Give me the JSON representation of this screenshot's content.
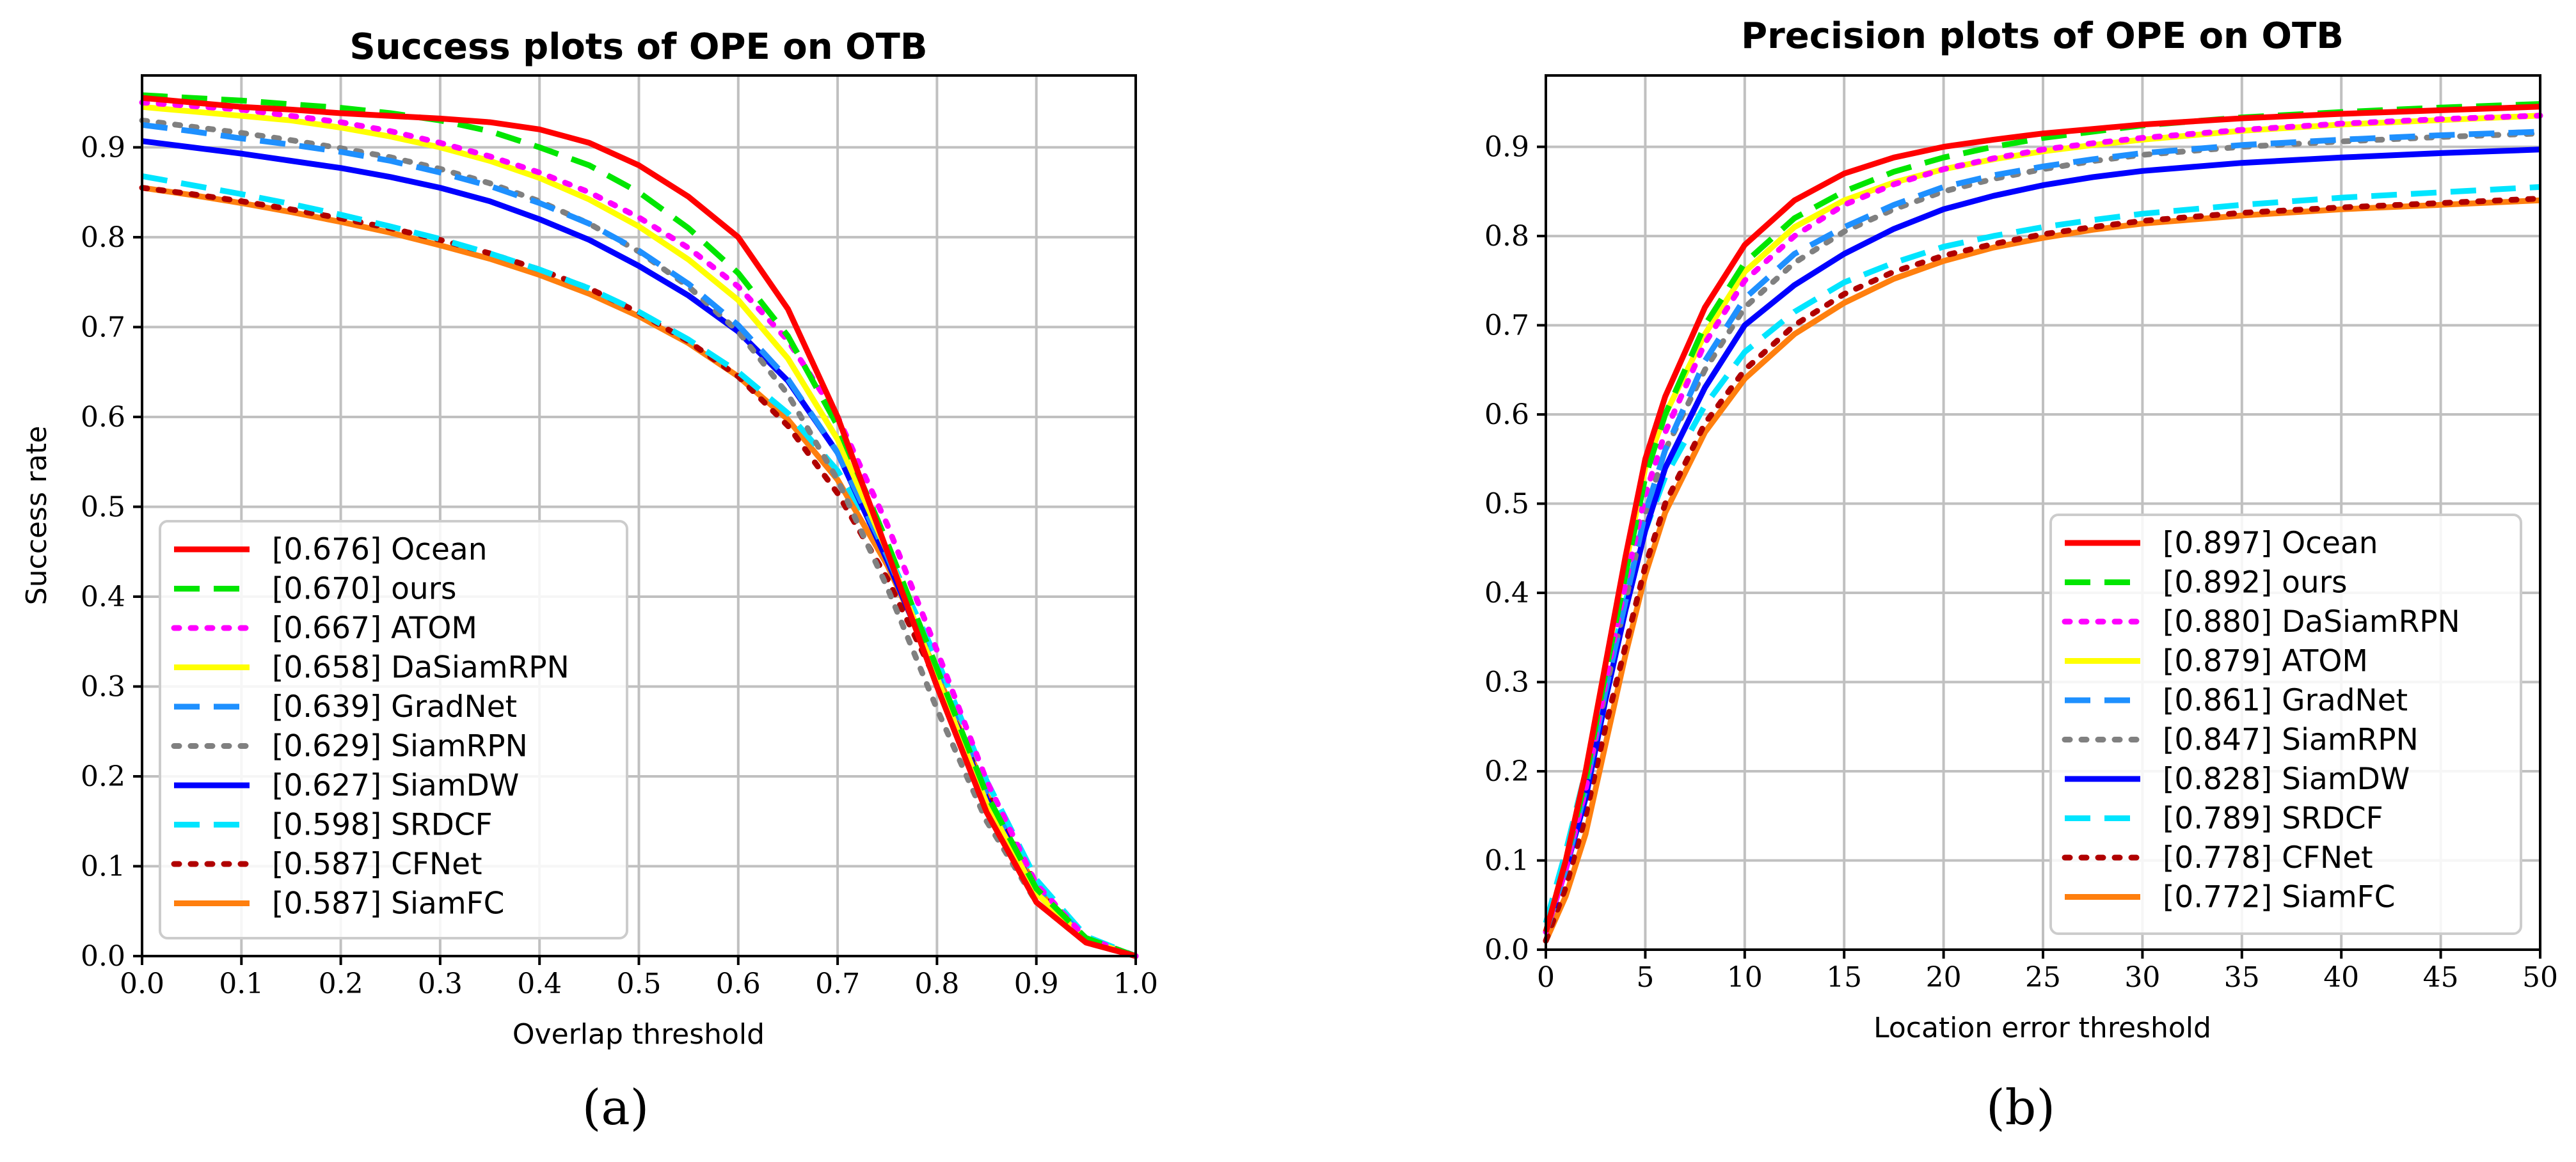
{
  "chart_data": [
    {
      "type": "line",
      "title": "Success plots of OPE on OTB",
      "xlabel": "Overlap threshold",
      "ylabel": "Success rate",
      "caption": "(a)",
      "xlim": [
        0,
        1
      ],
      "ylim": [
        0,
        0.98
      ],
      "xticks": [
        0,
        0.1,
        0.2,
        0.3,
        0.4,
        0.5,
        0.6,
        0.7,
        0.8,
        0.9,
        1.0
      ],
      "xtick_labels": [
        "0.0",
        "0.1",
        "0.2",
        "0.3",
        "0.4",
        "0.5",
        "0.6",
        "0.7",
        "0.8",
        "0.9",
        "1.0"
      ],
      "yticks": [
        0,
        0.1,
        0.2,
        0.3,
        0.4,
        0.5,
        0.6,
        0.7,
        0.8,
        0.9
      ],
      "ytick_labels": [
        "0.0",
        "0.1",
        "0.2",
        "0.3",
        "0.4",
        "0.5",
        "0.6",
        "0.7",
        "0.8",
        "0.9"
      ],
      "grid": true,
      "legend_position": "lower-left",
      "x": [
        0,
        0.05,
        0.1,
        0.15,
        0.2,
        0.25,
        0.3,
        0.35,
        0.4,
        0.45,
        0.5,
        0.55,
        0.6,
        0.65,
        0.7,
        0.75,
        0.8,
        0.85,
        0.9,
        0.95,
        1.0
      ],
      "series": [
        {
          "name": "[0.676] Ocean",
          "color": "#ff0000",
          "dash": "solid",
          "values": [
            0.955,
            0.95,
            0.945,
            0.942,
            0.938,
            0.935,
            0.932,
            0.928,
            0.92,
            0.905,
            0.88,
            0.845,
            0.8,
            0.72,
            0.6,
            0.45,
            0.3,
            0.16,
            0.06,
            0.015,
            0.0
          ]
        },
        {
          "name": "[0.670] ours",
          "color": "#00e600",
          "dash": "dash",
          "values": [
            0.958,
            0.955,
            0.952,
            0.948,
            0.944,
            0.938,
            0.93,
            0.918,
            0.9,
            0.88,
            0.85,
            0.81,
            0.76,
            0.69,
            0.59,
            0.46,
            0.32,
            0.18,
            0.075,
            0.02,
            0.0
          ]
        },
        {
          "name": "[0.667] ATOM",
          "color": "#ff00ff",
          "dash": "dot",
          "values": [
            0.95,
            0.946,
            0.942,
            0.935,
            0.928,
            0.918,
            0.905,
            0.89,
            0.872,
            0.85,
            0.822,
            0.788,
            0.745,
            0.685,
            0.6,
            0.48,
            0.34,
            0.195,
            0.08,
            0.02,
            0.0
          ]
        },
        {
          "name": "[0.658] DaSiamRPN",
          "color": "#ffff00",
          "dash": "solid",
          "values": [
            0.945,
            0.94,
            0.935,
            0.93,
            0.922,
            0.912,
            0.9,
            0.885,
            0.866,
            0.842,
            0.812,
            0.775,
            0.73,
            0.665,
            0.575,
            0.45,
            0.31,
            0.17,
            0.07,
            0.018,
            0.0
          ]
        },
        {
          "name": "[0.639] GradNet",
          "color": "#1e90ff",
          "dash": "dash",
          "values": [
            0.925,
            0.918,
            0.91,
            0.903,
            0.895,
            0.885,
            0.872,
            0.857,
            0.838,
            0.815,
            0.785,
            0.748,
            0.702,
            0.642,
            0.56,
            0.445,
            0.315,
            0.18,
            0.075,
            0.02,
            0.0
          ]
        },
        {
          "name": "[0.629] SiamRPN",
          "color": "#808080",
          "dash": "dot",
          "values": [
            0.93,
            0.923,
            0.916,
            0.908,
            0.899,
            0.889,
            0.876,
            0.86,
            0.84,
            0.815,
            0.784,
            0.745,
            0.695,
            0.625,
            0.53,
            0.41,
            0.275,
            0.15,
            0.06,
            0.015,
            0.0
          ]
        },
        {
          "name": "[0.627] SiamDW",
          "color": "#0000ff",
          "dash": "solid",
          "values": [
            0.907,
            0.9,
            0.893,
            0.885,
            0.877,
            0.867,
            0.855,
            0.84,
            0.82,
            0.797,
            0.768,
            0.735,
            0.695,
            0.64,
            0.56,
            0.44,
            0.31,
            0.175,
            0.07,
            0.018,
            0.0
          ]
        },
        {
          "name": "[0.598] SRDCF",
          "color": "#00e5ff",
          "dash": "dash",
          "values": [
            0.868,
            0.858,
            0.848,
            0.837,
            0.825,
            0.812,
            0.798,
            0.782,
            0.764,
            0.743,
            0.717,
            0.686,
            0.65,
            0.604,
            0.54,
            0.45,
            0.33,
            0.195,
            0.085,
            0.022,
            0.0
          ]
        },
        {
          "name": "[0.587] CFNet",
          "color": "#b00000",
          "dash": "dot",
          "values": [
            0.855,
            0.848,
            0.84,
            0.831,
            0.821,
            0.81,
            0.797,
            0.782,
            0.764,
            0.743,
            0.716,
            0.684,
            0.645,
            0.59,
            0.515,
            0.42,
            0.305,
            0.185,
            0.08,
            0.02,
            0.0
          ]
        },
        {
          "name": "[0.587] SiamFC",
          "color": "#ff7f0e",
          "dash": "solid",
          "values": [
            0.855,
            0.847,
            0.838,
            0.828,
            0.817,
            0.805,
            0.791,
            0.776,
            0.758,
            0.737,
            0.712,
            0.682,
            0.645,
            0.597,
            0.53,
            0.435,
            0.315,
            0.18,
            0.075,
            0.018,
            0.0
          ]
        }
      ]
    },
    {
      "type": "line",
      "title": "Precision plots of OPE on OTB",
      "xlabel": "Location error threshold",
      "ylabel": "",
      "caption": "(b)",
      "xlim": [
        0,
        50
      ],
      "ylim": [
        0,
        0.98
      ],
      "xticks": [
        0,
        5,
        10,
        15,
        20,
        25,
        30,
        35,
        40,
        45,
        50
      ],
      "xtick_labels": [
        "0",
        "5",
        "10",
        "15",
        "20",
        "25",
        "30",
        "35",
        "40",
        "45",
        "50"
      ],
      "yticks": [
        0,
        0.1,
        0.2,
        0.3,
        0.4,
        0.5,
        0.6,
        0.7,
        0.8,
        0.9
      ],
      "ytick_labels": [
        "0.0",
        "0.1",
        "0.2",
        "0.3",
        "0.4",
        "0.5",
        "0.6",
        "0.7",
        "0.8",
        "0.9"
      ],
      "grid": true,
      "legend_position": "lower-right",
      "x": [
        0,
        1,
        2,
        3,
        4,
        5,
        6,
        8,
        10,
        12.5,
        15,
        17.5,
        20,
        22.5,
        25,
        27.5,
        30,
        35,
        40,
        45,
        50
      ],
      "series": [
        {
          "name": "[0.897] Ocean",
          "color": "#ff0000",
          "dash": "solid",
          "values": [
            0.02,
            0.1,
            0.2,
            0.32,
            0.44,
            0.55,
            0.62,
            0.72,
            0.79,
            0.84,
            0.87,
            0.888,
            0.9,
            0.908,
            0.915,
            0.92,
            0.925,
            0.932,
            0.937,
            0.941,
            0.945
          ]
        },
        {
          "name": "[0.892] ours",
          "color": "#00e600",
          "dash": "dash",
          "values": [
            0.02,
            0.1,
            0.19,
            0.31,
            0.42,
            0.53,
            0.6,
            0.7,
            0.77,
            0.82,
            0.85,
            0.872,
            0.888,
            0.9,
            0.91,
            0.917,
            0.924,
            0.933,
            0.939,
            0.944,
            0.948
          ]
        },
        {
          "name": "[0.880] DaSiamRPN",
          "color": "#ff00ff",
          "dash": "dot",
          "values": [
            0.02,
            0.09,
            0.18,
            0.3,
            0.41,
            0.51,
            0.58,
            0.68,
            0.75,
            0.8,
            0.835,
            0.858,
            0.875,
            0.887,
            0.897,
            0.904,
            0.91,
            0.919,
            0.926,
            0.931,
            0.935
          ]
        },
        {
          "name": "[0.879] ATOM",
          "color": "#ffff00",
          "dash": "solid",
          "values": [
            0.02,
            0.1,
            0.2,
            0.32,
            0.43,
            0.54,
            0.6,
            0.69,
            0.76,
            0.81,
            0.84,
            0.86,
            0.875,
            0.886,
            0.895,
            0.902,
            0.908,
            0.918,
            0.925,
            0.93,
            0.935
          ]
        },
        {
          "name": "[0.861] GradNet",
          "color": "#1e90ff",
          "dash": "dash",
          "values": [
            0.02,
            0.09,
            0.18,
            0.29,
            0.39,
            0.49,
            0.56,
            0.66,
            0.73,
            0.78,
            0.81,
            0.835,
            0.855,
            0.868,
            0.878,
            0.886,
            0.893,
            0.902,
            0.908,
            0.913,
            0.917
          ]
        },
        {
          "name": "[0.847] SiamRPN",
          "color": "#808080",
          "dash": "dot",
          "values": [
            0.02,
            0.09,
            0.18,
            0.29,
            0.39,
            0.49,
            0.56,
            0.65,
            0.72,
            0.77,
            0.805,
            0.83,
            0.85,
            0.864,
            0.875,
            0.884,
            0.891,
            0.9,
            0.906,
            0.911,
            0.915
          ]
        },
        {
          "name": "[0.828] SiamDW",
          "color": "#0000ff",
          "dash": "solid",
          "values": [
            0.02,
            0.09,
            0.17,
            0.28,
            0.38,
            0.47,
            0.54,
            0.63,
            0.7,
            0.745,
            0.78,
            0.808,
            0.83,
            0.845,
            0.857,
            0.866,
            0.873,
            0.882,
            0.888,
            0.893,
            0.897
          ]
        },
        {
          "name": "[0.789] SRDCF",
          "color": "#00e5ff",
          "dash": "dash",
          "values": [
            0.03,
            0.11,
            0.2,
            0.3,
            0.39,
            0.47,
            0.53,
            0.61,
            0.67,
            0.715,
            0.748,
            0.77,
            0.788,
            0.8,
            0.81,
            0.818,
            0.825,
            0.835,
            0.843,
            0.849,
            0.855
          ]
        },
        {
          "name": "[0.778] CFNet",
          "color": "#b00000",
          "dash": "dot",
          "values": [
            0.01,
            0.07,
            0.15,
            0.25,
            0.34,
            0.43,
            0.5,
            0.59,
            0.65,
            0.7,
            0.735,
            0.76,
            0.778,
            0.791,
            0.802,
            0.81,
            0.817,
            0.826,
            0.832,
            0.837,
            0.842
          ]
        },
        {
          "name": "[0.772] SiamFC",
          "color": "#ff7f0e",
          "dash": "solid",
          "values": [
            0.01,
            0.06,
            0.13,
            0.23,
            0.33,
            0.42,
            0.49,
            0.58,
            0.64,
            0.69,
            0.725,
            0.752,
            0.772,
            0.787,
            0.798,
            0.807,
            0.814,
            0.823,
            0.83,
            0.835,
            0.84
          ]
        }
      ]
    }
  ]
}
